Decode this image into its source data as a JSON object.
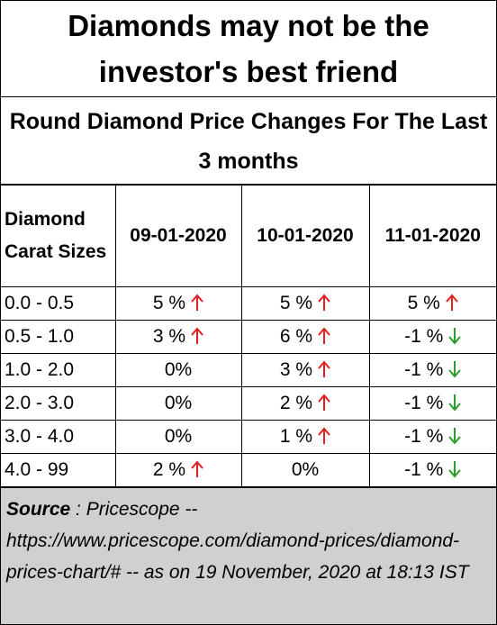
{
  "header": {
    "title": "Diamonds may not be the investor's best friend",
    "subtitle": "Round Diamond Price Changes For The Last 3 months"
  },
  "table": {
    "columns": [
      "Diamond Carat Sizes",
      "09-01-2020",
      "10-01-2020",
      "11-01-2020"
    ],
    "rows": [
      [
        "0.0 - 0.5",
        "5 %",
        "5 %",
        "5 %"
      ],
      [
        "0.5 - 1.0",
        "3 %",
        "6 %",
        "-1 %"
      ],
      [
        "1.0 - 2.0",
        "0%",
        "3 %",
        "-1 %"
      ],
      [
        "2.0 - 3.0",
        "0%",
        "2 %",
        "-1 %"
      ],
      [
        "3.0 - 4.0",
        "0%",
        "1 %",
        "-1 %"
      ],
      [
        "4.0 - 99",
        "2 %",
        "0%",
        "-1 %"
      ]
    ]
  },
  "source": {
    "label": "Source",
    "text": ": Pricescope -- https://www.pricescope.com/diamond-prices/diamond-prices-chart/#  -- as on 19 November, 2020 at 18:13 IST"
  }
}
